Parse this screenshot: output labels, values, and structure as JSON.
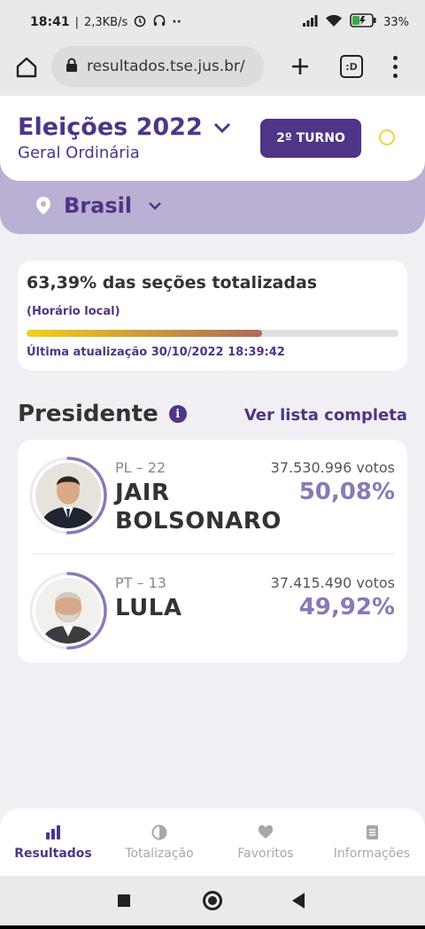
{
  "status_bar": {
    "time": "18:41",
    "network_speed": "2,3KB/s",
    "battery": "33%"
  },
  "browser": {
    "url": "resultados.tse.jus.br/",
    "tabs_label": ":D"
  },
  "header": {
    "title": "Eleições 2022",
    "subtitle": "Geral Ordinária",
    "turno_button": "2º TURNO",
    "location": "Brasil"
  },
  "progress": {
    "title": "63,39% das seções totalizadas",
    "note": "(Horário local)",
    "fraction": 0.6339,
    "last_update": "Última atualização 30/10/2022 18:39:42"
  },
  "section": {
    "title": "Presidente",
    "see_all": "Ver lista completa"
  },
  "candidates": [
    {
      "party": "PL – 22",
      "name": "JAIR BOLSONARO",
      "votes": "37.530.996 votos",
      "percent": "50,08%",
      "ring_fraction": 0.5008
    },
    {
      "party": "PT – 13",
      "name": "LULA",
      "votes": "37.415.490 votos",
      "percent": "49,92%",
      "ring_fraction": 0.4992
    }
  ],
  "bottom_nav": [
    {
      "label": "Resultados",
      "icon": "bar-chart-icon",
      "active": true
    },
    {
      "label": "Totalização",
      "icon": "pie-chart-icon",
      "active": false
    },
    {
      "label": "Favoritos",
      "icon": "heart-icon",
      "active": false
    },
    {
      "label": "Informações",
      "icon": "document-icon",
      "active": false
    }
  ],
  "colors": {
    "brand_purple": "#4e3587",
    "accent_purple": "#8a78b8",
    "band_purple": "#b9b0d3",
    "progress_start": "#f0d21c",
    "progress_end": "#b06a5c"
  }
}
